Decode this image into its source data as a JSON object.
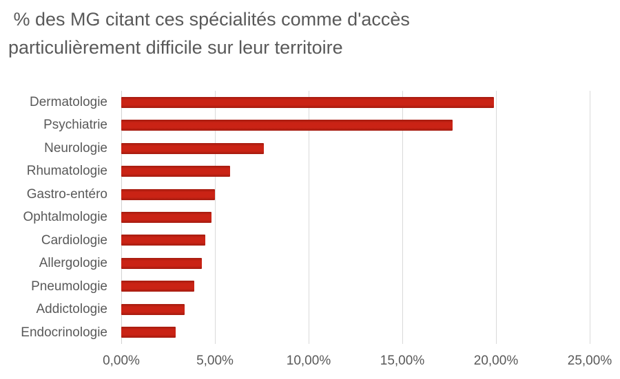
{
  "title_lines": [
    " % des MG citant ces spécialités comme d'accès",
    "particulièrement difficile sur leur territoire"
  ],
  "chart_data": {
    "type": "bar",
    "orientation": "horizontal",
    "title": "% des MG citant ces spécialités comme d'accès particulièrement difficile sur leur territoire",
    "categories": [
      "Dermatologie",
      "Psychiatrie",
      "Neurologie",
      "Rhumatologie",
      "Gastro-entéro",
      "Ophtalmologie",
      "Cardiologie",
      "Allergologie",
      "Pneumologie",
      "Addictologie",
      "Endocrinologie"
    ],
    "values": [
      19.9,
      17.7,
      7.6,
      5.8,
      5.0,
      4.8,
      4.5,
      4.3,
      3.9,
      3.4,
      2.9
    ],
    "values_unit": "%",
    "x_ticks": [
      "0,00%",
      "5,00%",
      "10,00%",
      "15,00%",
      "20,00%",
      "25,00%"
    ],
    "x_tick_values": [
      0,
      5,
      10,
      15,
      20,
      25
    ],
    "xlim": [
      0,
      25
    ],
    "xlabel": "",
    "ylabel": "",
    "grid": true,
    "legend": false,
    "bar_color": "#ca2315",
    "bar_edge_color": "#a31b0f",
    "gridline_color": "#d9d9d9",
    "axis_line_color": "#d2d2d2",
    "text_color": "#595959",
    "background_color": "#ffffff"
  }
}
